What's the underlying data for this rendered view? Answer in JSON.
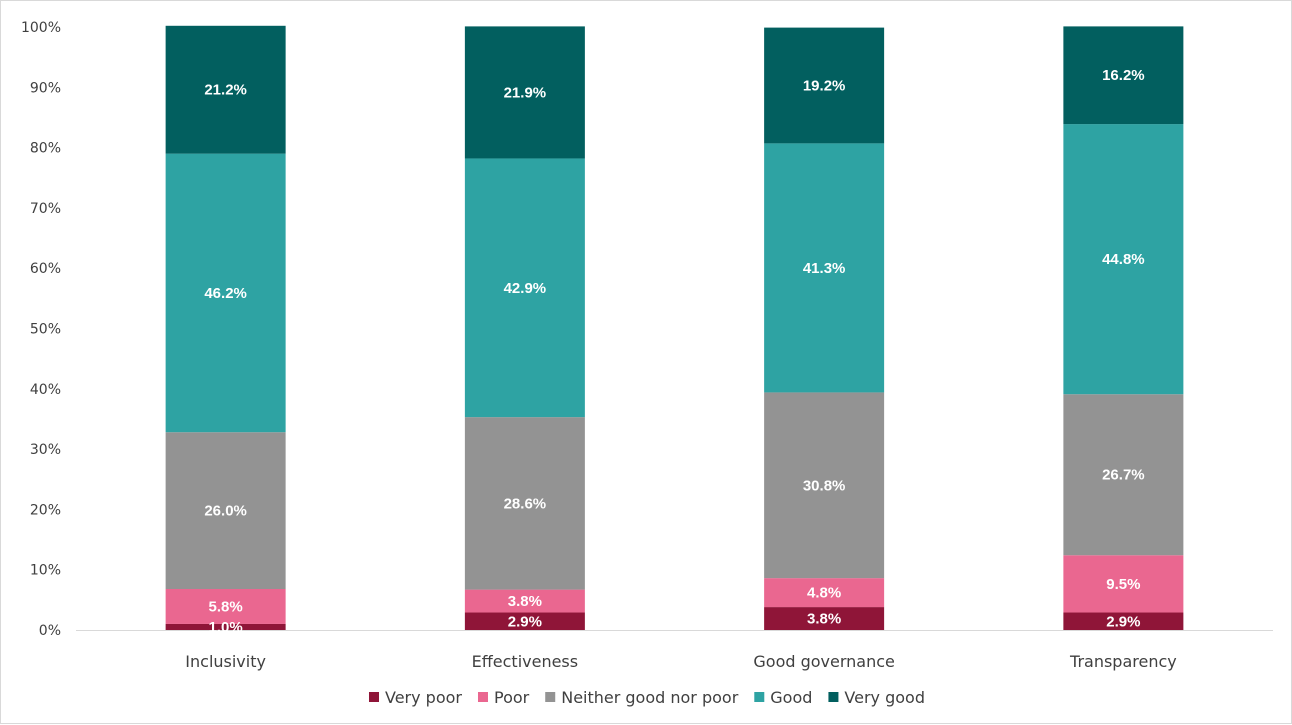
{
  "chart_data": {
    "type": "bar",
    "stacked": true,
    "normalized": true,
    "categories": [
      "Inclusivity",
      "Effectiveness",
      "Good governance",
      "Transparency"
    ],
    "series": [
      {
        "name": "Very poor",
        "color": "#8f1538",
        "values": [
          1.0,
          2.9,
          3.8,
          2.9
        ],
        "labels": [
          "1.0%",
          "2.9%",
          "3.8%",
          "2.9%"
        ]
      },
      {
        "name": "Poor",
        "color": "#ea6790",
        "values": [
          5.8,
          3.8,
          4.8,
          9.5
        ],
        "labels": [
          "5.8%",
          "3.8%",
          "4.8%",
          "9.5%"
        ]
      },
      {
        "name": "Neither good nor poor",
        "color": "#939393",
        "values": [
          26.0,
          28.6,
          30.8,
          26.7
        ],
        "labels": [
          "26.0%",
          "28.6%",
          "30.8%",
          "26.7%"
        ]
      },
      {
        "name": "Good",
        "color": "#2ea3a3",
        "values": [
          46.2,
          42.9,
          41.3,
          44.8
        ],
        "labels": [
          "46.2%",
          "42.9%",
          "41.3%",
          "44.8%"
        ]
      },
      {
        "name": "Very good",
        "color": "#025f5f",
        "values": [
          21.2,
          21.9,
          19.2,
          16.2
        ],
        "labels": [
          "21.2%",
          "21.9%",
          "19.2%",
          "16.2%"
        ]
      }
    ],
    "ylim": [
      0,
      100
    ],
    "yticks": [
      "0%",
      "10%",
      "20%",
      "30%",
      "40%",
      "50%",
      "60%",
      "70%",
      "80%",
      "90%",
      "100%"
    ],
    "grid": false,
    "legend_position": "bottom",
    "title": "",
    "xlabel": "",
    "ylabel": ""
  }
}
